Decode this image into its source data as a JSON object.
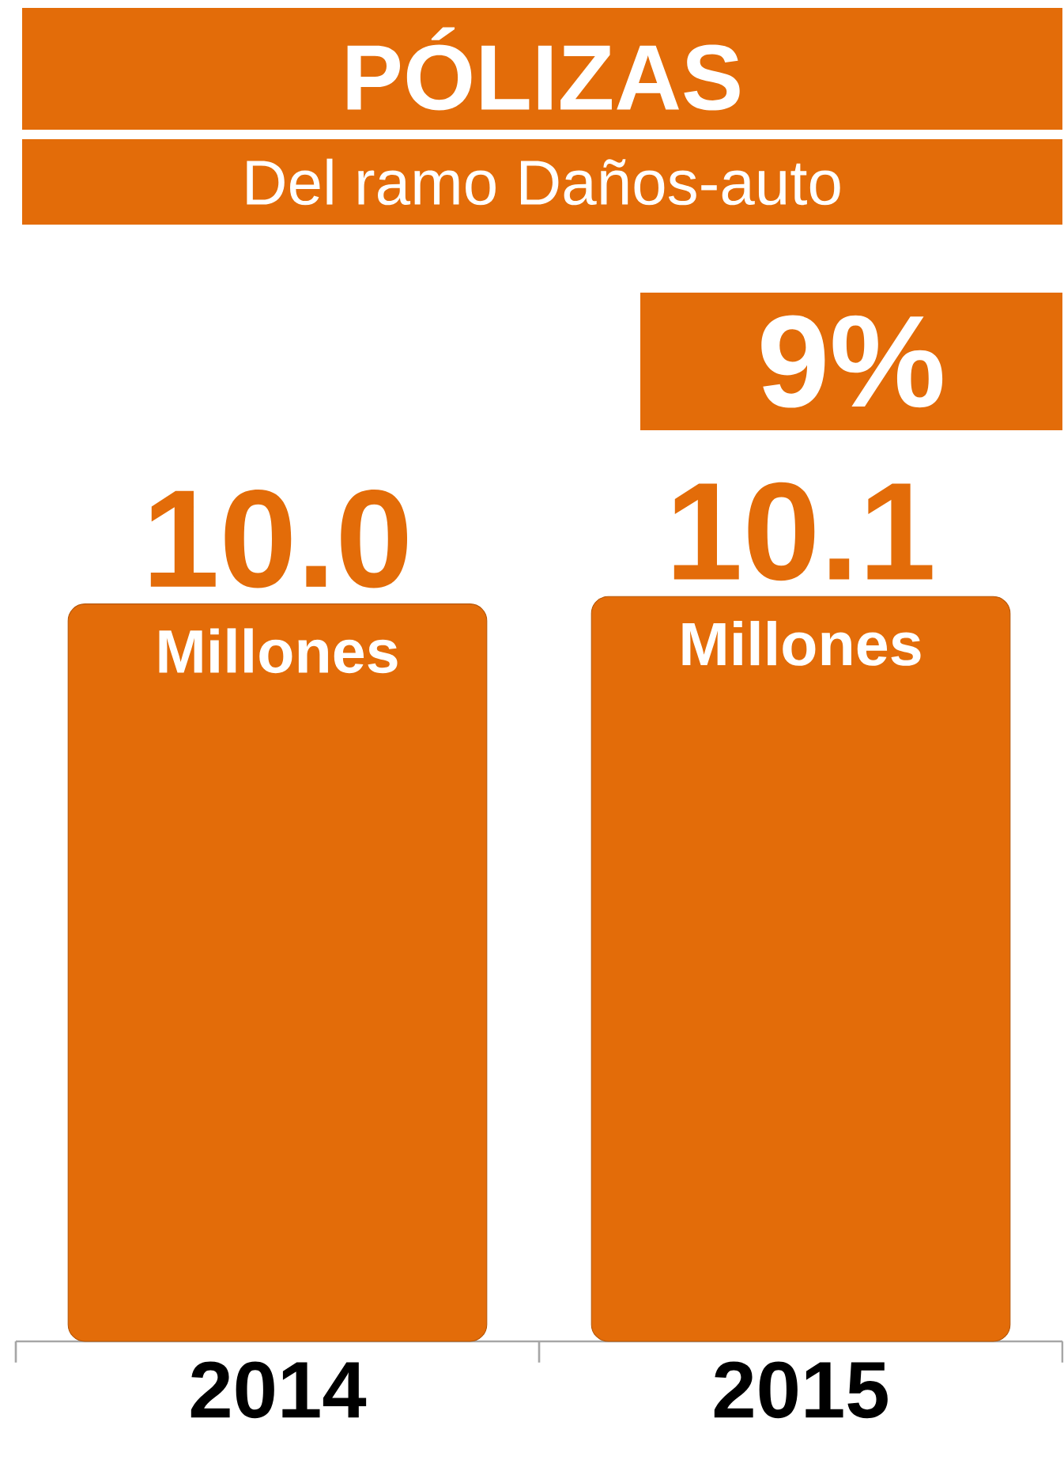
{
  "chart_data": {
    "type": "bar",
    "title": "PÓLIZAS",
    "subtitle": "Del ramo Daños-auto",
    "categories": [
      "2014",
      "2015"
    ],
    "values": [
      10.0,
      10.1
    ],
    "value_labels": [
      "10.0",
      "10.1"
    ],
    "color": "#e36c09",
    "tick_labels": "x",
    "annotations": [
      "Millones",
      "Millones",
      "9%"
    ]
  }
}
